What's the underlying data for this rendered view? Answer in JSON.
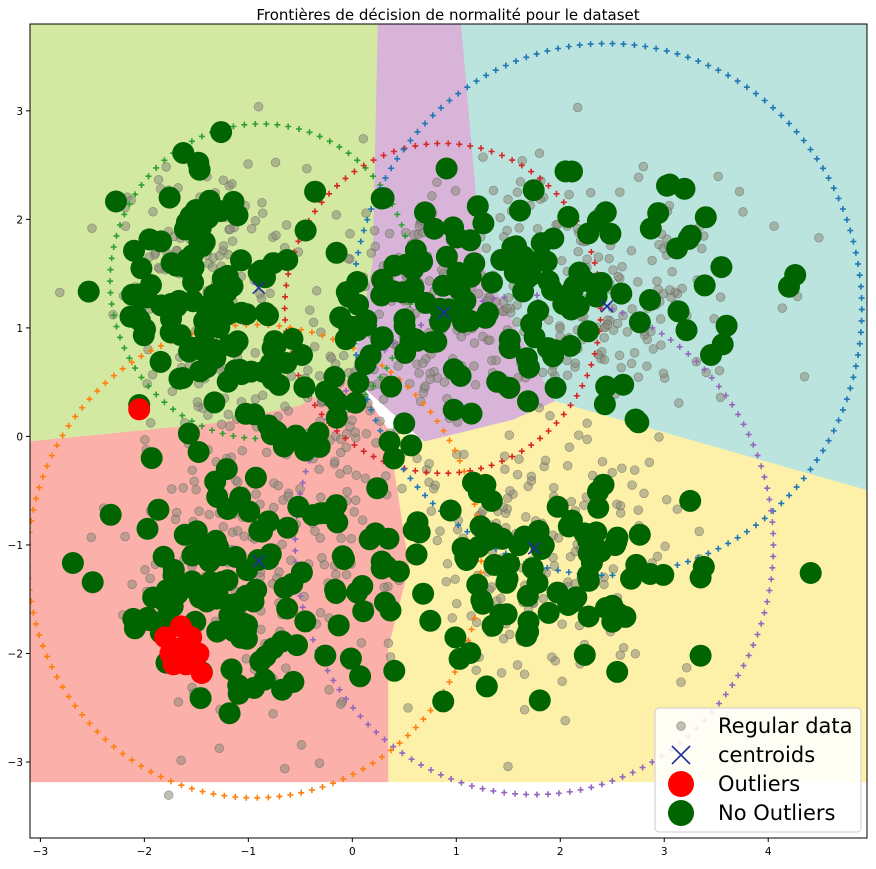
{
  "chart_data": {
    "type": "scatter",
    "title": "Frontières de décision de normalité pour le dataset",
    "xlabel": "",
    "ylabel": "",
    "xlim": [
      -3.1,
      4.95
    ],
    "ylim": [
      -3.7,
      3.8
    ],
    "xticks": [
      -3,
      -2,
      -1,
      0,
      1,
      2,
      3,
      4
    ],
    "yticks": [
      -3,
      -2,
      -1,
      0,
      1,
      2,
      3
    ],
    "grid": false,
    "legend": {
      "position": "bottom-right",
      "entries": [
        "Regular data",
        "centroids",
        "Outliers",
        "No Outliers"
      ]
    },
    "colors": {
      "regions": {
        "green": "#d3e9a2",
        "purple": "#d7b4d8",
        "teal": "#bce4de",
        "red": "#fbb0a9",
        "yellow": "#fdf1a9"
      },
      "regular_data": "#8a8a7a",
      "centroid": "#1f2f9f",
      "outlier": "#ff0000",
      "no_outlier": "#006400",
      "circles": {
        "green": "#2ca02c",
        "red": "#d62728",
        "blue": "#1f77b4",
        "orange": "#ff7f0e",
        "purple": "#9467bd"
      }
    },
    "region_extent": {
      "ymin": -3.18,
      "ymax": 3.8
    },
    "centroids": [
      {
        "x": -0.9,
        "y": 1.37,
        "cluster": "green"
      },
      {
        "x": 0.88,
        "y": 1.14,
        "cluster": "purple"
      },
      {
        "x": 1.75,
        "y": -1.03,
        "cluster": "yellow"
      },
      {
        "x": -0.9,
        "y": -1.15,
        "cluster": "red"
      },
      {
        "x": 2.45,
        "y": 1.2,
        "cluster": "teal"
      }
    ],
    "circles": [
      {
        "cx": -0.88,
        "cy": 1.43,
        "r": 1.45,
        "color": "green"
      },
      {
        "cx": 0.87,
        "cy": 1.18,
        "r": 1.52,
        "color": "red"
      },
      {
        "cx": 2.45,
        "cy": 1.17,
        "r": 2.45,
        "color": "blue"
      },
      {
        "cx": -0.94,
        "cy": -1.15,
        "r": 2.18,
        "color": "orange"
      },
      {
        "cx": 1.75,
        "cy": -1.0,
        "r": 2.3,
        "color": "purple"
      }
    ],
    "outliers": [
      {
        "x": -2.05,
        "y": 0.25
      },
      {
        "x": -1.8,
        "y": -1.85
      },
      {
        "x": -1.75,
        "y": -2.0
      },
      {
        "x": -1.72,
        "y": -2.1
      },
      {
        "x": -1.65,
        "y": -1.95
      },
      {
        "x": -1.6,
        "y": -2.1
      },
      {
        "x": -1.55,
        "y": -1.85
      },
      {
        "x": -1.48,
        "y": -2.0
      },
      {
        "x": -1.45,
        "y": -2.18
      },
      {
        "x": -1.65,
        "y": -1.75
      }
    ],
    "no_outlier_clusters": [
      {
        "cx": -1.4,
        "cy": 1.3,
        "sx": 0.42,
        "sy": 0.55,
        "n": 95
      },
      {
        "cx": -0.35,
        "cy": 0.45,
        "sx": 0.55,
        "sy": 0.55,
        "n": 60
      },
      {
        "cx": 0.95,
        "cy": 1.35,
        "sx": 0.6,
        "sy": 0.45,
        "n": 75
      },
      {
        "cx": 2.3,
        "cy": 1.3,
        "sx": 0.55,
        "sy": 0.55,
        "n": 55
      },
      {
        "cx": -1.35,
        "cy": -1.55,
        "sx": 0.45,
        "sy": 0.5,
        "n": 80
      },
      {
        "cx": 1.9,
        "cy": -1.3,
        "sx": 0.7,
        "sy": 0.5,
        "n": 85
      },
      {
        "cx": -0.2,
        "cy": -1.3,
        "sx": 0.45,
        "sy": 0.55,
        "n": 40
      }
    ],
    "no_outlier_extra": [
      {
        "x": 4.2,
        "y": 1.38
      },
      {
        "x": 3.4,
        "y": 2.02
      },
      {
        "x": 3.55,
        "y": 1.56
      },
      {
        "x": 3.6,
        "y": 1.02
      },
      {
        "x": 3.45,
        "y": 0.75
      },
      {
        "x": 3.35,
        "y": -2.02
      },
      {
        "x": 3.35,
        "y": -1.3
      },
      {
        "x": -2.1,
        "y": 1.71
      },
      {
        "x": -2.05,
        "y": 0.29
      },
      {
        "x": 2.75,
        "y": 0.13
      },
      {
        "x": -1.93,
        "y": -0.2
      }
    ],
    "regular_clusters": [
      {
        "cx": -1.35,
        "cy": 1.4,
        "sx": 0.45,
        "sy": 0.55,
        "n": 160
      },
      {
        "cx": 0.9,
        "cy": 1.25,
        "sx": 0.65,
        "sy": 0.55,
        "n": 190
      },
      {
        "cx": 2.45,
        "cy": 1.25,
        "sx": 0.7,
        "sy": 0.6,
        "n": 170
      },
      {
        "cx": -1.0,
        "cy": -1.2,
        "sx": 0.65,
        "sy": 0.7,
        "n": 190
      },
      {
        "cx": 1.75,
        "cy": -1.05,
        "sx": 0.75,
        "sy": 0.6,
        "n": 190
      },
      {
        "cx": -0.2,
        "cy": 0.25,
        "sx": 0.55,
        "sy": 0.45,
        "n": 70
      }
    ]
  }
}
